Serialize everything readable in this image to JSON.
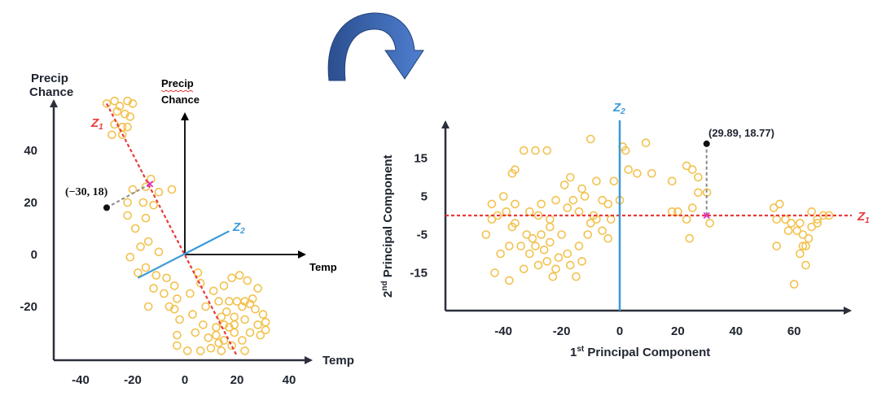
{
  "colors": {
    "axis": "#2b2f3a",
    "points": "#f2c24e",
    "z1_line": "#e83a3a",
    "z2_line": "#3a9ad9",
    "projection_mark": "#e02fc7",
    "guide": "#8a8a8a",
    "arrow_dark": "#2b4f8f",
    "arrow_light": "#4f7fd0"
  },
  "left_plot": {
    "y_axis_label_line1": "Precip",
    "y_axis_label_line2": "Chance",
    "x_axis_label": "Temp",
    "inner_y_label_line1": "Precip",
    "inner_y_label_line2": "Chance",
    "inner_x_label": "Temp",
    "z1_label": "Z",
    "z1_sub": "1",
    "z2_label": "Z",
    "z2_sub": "2",
    "highlight_point_label": "(−30, 18)",
    "x_ticks": [
      "-40",
      "-20",
      "0",
      "20",
      "40"
    ],
    "y_ticks": [
      "40",
      "20",
      "0",
      "-20"
    ]
  },
  "right_plot": {
    "x_axis_label_pre": "1",
    "x_axis_label_sup": "st",
    "x_axis_label_post": " Principal Component",
    "y_axis_label_pre": "2",
    "y_axis_label_sup": "nd",
    "y_axis_label_post": " Principal Component",
    "z1_label": "Z",
    "z1_sub": "1",
    "z2_label": "Z",
    "z2_sub": "2",
    "highlight_point_label": "(29.89, 18.77)",
    "x_ticks": [
      "-40",
      "-20",
      "0",
      "20",
      "40",
      "60"
    ],
    "y_ticks": [
      "15",
      "5",
      "-5",
      "-15"
    ]
  },
  "chart_data": [
    {
      "type": "scatter",
      "title": "",
      "xlabel": "Temp",
      "ylabel": "Precip Chance",
      "xlim": [
        -50,
        45
      ],
      "ylim": [
        -40,
        60
      ],
      "x_ticks": [
        -40,
        -20,
        0,
        20,
        40
      ],
      "y_ticks": [
        -20,
        0,
        20,
        40
      ],
      "highlight": {
        "x": -30,
        "y": 18,
        "label": "(−30, 18)"
      },
      "projection_on_z1": {
        "x": -13.4,
        "y": 27.1
      },
      "z1_line": {
        "from": [
          -30,
          58
        ],
        "to": [
          20,
          -39
        ]
      },
      "z2_line": {
        "from": [
          -18,
          -9
        ],
        "to": [
          17,
          9
        ]
      },
      "points": [
        [
          -30,
          58
        ],
        [
          -27,
          59
        ],
        [
          -25,
          57
        ],
        [
          -22,
          59
        ],
        [
          -20,
          58
        ],
        [
          -26,
          55
        ],
        [
          -23,
          54
        ],
        [
          -21,
          53
        ],
        [
          -27,
          50
        ],
        [
          -24,
          49
        ],
        [
          -22,
          49
        ],
        [
          -28,
          46
        ],
        [
          -24,
          46
        ],
        [
          -13,
          29
        ],
        [
          -15,
          26
        ],
        [
          -20,
          25
        ],
        [
          -10,
          24
        ],
        [
          -5,
          25
        ],
        [
          -22,
          20
        ],
        [
          -16,
          20
        ],
        [
          -12,
          19
        ],
        [
          -22,
          15
        ],
        [
          -15,
          14
        ],
        [
          -19,
          10
        ],
        [
          -14,
          5
        ],
        [
          -17,
          3
        ],
        [
          -10,
          1
        ],
        [
          -21,
          -1
        ],
        [
          -15,
          -5
        ],
        [
          -18,
          -7
        ],
        [
          -11,
          -8
        ],
        [
          -7,
          -9
        ],
        [
          -4,
          -12
        ],
        [
          -8,
          -15
        ],
        [
          -12,
          -13
        ],
        [
          -3,
          -17
        ],
        [
          -6,
          -20
        ],
        [
          -14,
          -20
        ],
        [
          -2,
          -25
        ],
        [
          5,
          -7
        ],
        [
          6,
          -11
        ],
        [
          2,
          -15
        ],
        [
          8,
          -20
        ],
        [
          3,
          -23
        ],
        [
          -4,
          -21
        ],
        [
          -3,
          -31
        ],
        [
          4,
          -30
        ],
        [
          9,
          -32
        ],
        [
          12,
          -28
        ],
        [
          14,
          -24
        ],
        [
          16,
          -22
        ],
        [
          19,
          -24
        ],
        [
          22,
          -20
        ],
        [
          26,
          -17
        ],
        [
          28,
          -13
        ],
        [
          24,
          -10
        ],
        [
          21,
          -8
        ],
        [
          18,
          -9
        ],
        [
          15,
          -12
        ],
        [
          11,
          -14
        ],
        [
          13,
          -18
        ],
        [
          17,
          -18
        ],
        [
          20,
          -18
        ],
        [
          23,
          -18
        ],
        [
          25,
          -19
        ],
        [
          27,
          -21
        ],
        [
          30,
          -23
        ],
        [
          31,
          -26
        ],
        [
          23,
          -25
        ],
        [
          19,
          -27
        ],
        [
          17,
          -28
        ],
        [
          12,
          -31
        ],
        [
          15,
          -33
        ],
        [
          18,
          -35
        ],
        [
          22,
          -33
        ],
        [
          25,
          -30
        ],
        [
          28,
          -27
        ],
        [
          31,
          -29
        ],
        [
          29,
          -31
        ],
        [
          23,
          -37
        ],
        [
          14,
          -37
        ],
        [
          10,
          -36
        ],
        [
          6,
          -37
        ],
        [
          1,
          -37
        ],
        [
          -3,
          -35
        ],
        [
          15,
          -27
        ],
        [
          19,
          -30
        ],
        [
          13,
          -34
        ],
        [
          7,
          -27
        ]
      ]
    },
    {
      "type": "scatter",
      "title": "",
      "xlabel": "1st Principal Component",
      "ylabel": "2nd Principal Component",
      "xlim": [
        -60,
        80
      ],
      "ylim": [
        -25,
        25
      ],
      "x_ticks": [
        -40,
        -20,
        0,
        20,
        40,
        60
      ],
      "y_ticks": [
        -15,
        -5,
        5,
        15
      ],
      "highlight": {
        "x": 29.89,
        "y": 18.77,
        "label": "(29.89, 18.77)"
      },
      "projection_on_z1": {
        "x": 29.89,
        "y": 0
      },
      "points": [
        [
          -44,
          3
        ],
        [
          -40,
          5
        ],
        [
          -37,
          11
        ],
        [
          -36,
          12
        ],
        [
          -33,
          17
        ],
        [
          -29,
          17
        ],
        [
          -25,
          17
        ],
        [
          -19,
          8
        ],
        [
          -17,
          10
        ],
        [
          -13,
          7
        ],
        [
          -10,
          20
        ],
        [
          -8,
          9
        ],
        [
          -4,
          3
        ],
        [
          -2,
          9
        ],
        [
          0,
          4
        ],
        [
          1,
          18
        ],
        [
          2,
          17
        ],
        [
          3,
          12
        ],
        [
          6,
          11
        ],
        [
          9,
          19
        ],
        [
          11,
          11
        ],
        [
          18,
          9
        ],
        [
          23,
          13
        ],
        [
          25,
          12
        ],
        [
          27,
          10
        ],
        [
          27,
          6
        ],
        [
          30,
          6
        ],
        [
          -46,
          -5
        ],
        [
          -43,
          -15
        ],
        [
          -41,
          -10
        ],
        [
          -38,
          -17
        ],
        [
          -36,
          -2
        ],
        [
          -34,
          -8
        ],
        [
          -33,
          -14
        ],
        [
          -31,
          -10
        ],
        [
          -30,
          -6
        ],
        [
          -29,
          -8
        ],
        [
          -28,
          -13
        ],
        [
          -27,
          -5
        ],
        [
          -26,
          -9
        ],
        [
          -25,
          -12
        ],
        [
          -24,
          -7
        ],
        [
          -23,
          -16
        ],
        [
          -22,
          -14
        ],
        [
          -21,
          -11
        ],
        [
          -20,
          -5
        ],
        [
          -18,
          -10
        ],
        [
          -17,
          -13
        ],
        [
          -15,
          -16
        ],
        [
          -14,
          -8
        ],
        [
          -13,
          -12
        ],
        [
          -11,
          -5
        ],
        [
          -8,
          -1
        ],
        [
          -6,
          -4
        ],
        [
          -4,
          -6
        ],
        [
          -31,
          1
        ],
        [
          -28,
          0
        ],
        [
          -24,
          -1
        ],
        [
          -18,
          2
        ],
        [
          -14,
          1
        ],
        [
          -9,
          0
        ],
        [
          -3,
          -1
        ],
        [
          -27,
          3
        ],
        [
          -22,
          4
        ],
        [
          -16,
          4
        ],
        [
          -12,
          5
        ],
        [
          -6,
          4
        ],
        [
          -36,
          3
        ],
        [
          -39,
          1
        ],
        [
          -42,
          0
        ],
        [
          -44,
          -1
        ],
        [
          -37,
          -3
        ],
        [
          -24,
          -3
        ],
        [
          -10,
          -2
        ],
        [
          -38,
          -8
        ],
        [
          -32,
          -5
        ],
        [
          18,
          1
        ],
        [
          20,
          1
        ],
        [
          23,
          -1
        ],
        [
          25,
          2
        ],
        [
          24,
          -6
        ],
        [
          31,
          -2
        ],
        [
          53,
          2
        ],
        [
          55,
          3
        ],
        [
          54,
          -1
        ],
        [
          57,
          -1
        ],
        [
          59,
          -2
        ],
        [
          61,
          -4
        ],
        [
          63,
          -5
        ],
        [
          65,
          -6
        ],
        [
          64,
          -8
        ],
        [
          62,
          -10
        ],
        [
          64,
          -13
        ],
        [
          60,
          -18
        ],
        [
          66,
          1
        ],
        [
          68,
          -1
        ],
        [
          70,
          0
        ],
        [
          72,
          0
        ],
        [
          54,
          -8
        ],
        [
          58,
          -4
        ],
        [
          62,
          -2
        ],
        [
          66,
          -3
        ],
        [
          68,
          -2
        ],
        [
          63,
          -8
        ]
      ]
    }
  ]
}
